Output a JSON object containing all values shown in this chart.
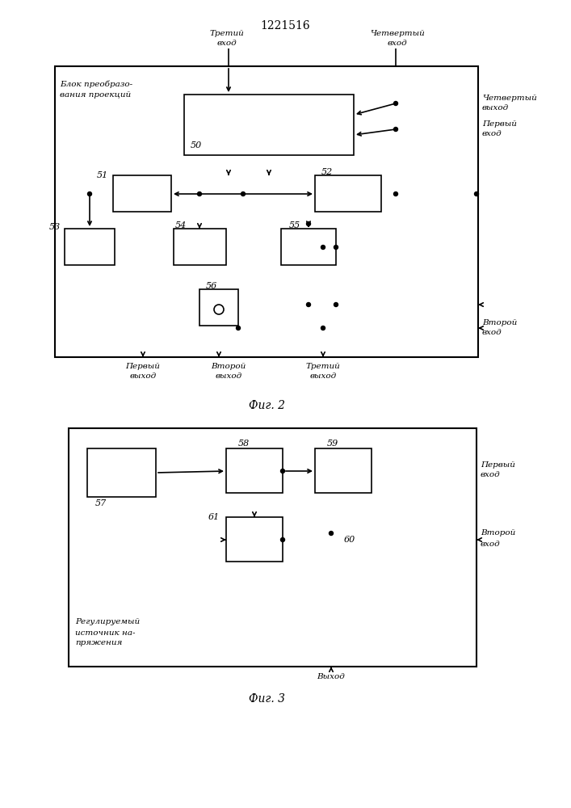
{
  "title": "1221516",
  "fig2_caption": "Фиг. 2",
  "fig3_caption": "Фиг. 3",
  "bg_color": "#ffffff",
  "line_color": "#000000"
}
